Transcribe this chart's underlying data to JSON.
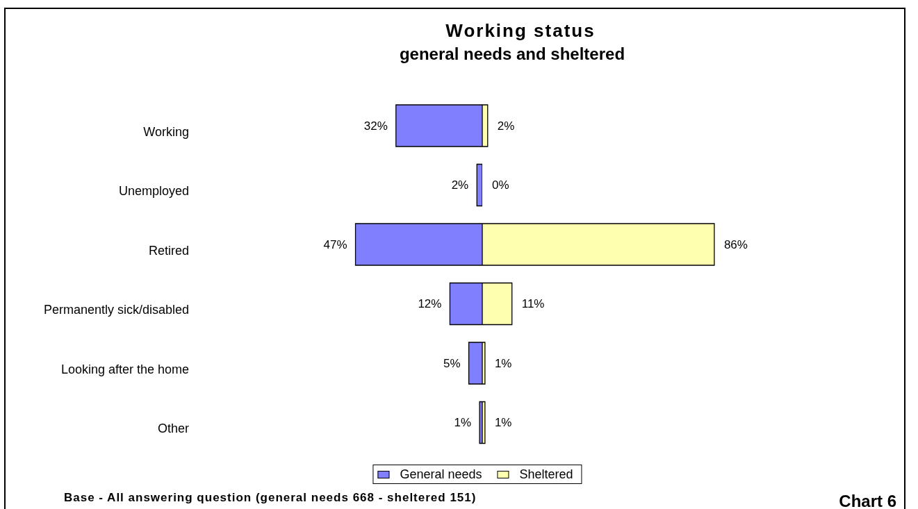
{
  "chart_data": [
    {
      "type": "bar",
      "orientation": "horizontal",
      "title": "Working status",
      "subtitle": "general needs and sheltered",
      "categories": [
        "Working",
        "Unemployed",
        "Retired",
        "Permanently sick/disabled",
        "Looking after the home",
        "Other"
      ],
      "series": [
        {
          "name": "General needs",
          "color": "#8080ff",
          "values": [
            32,
            2,
            47,
            12,
            5,
            1
          ],
          "value_labels": [
            "32%",
            "2%",
            "47%",
            "12%",
            "5%",
            "1%"
          ]
        }
      ],
      "tick_labels": "y",
      "legend": "bottom",
      "annotations": [
        "Base - All answering question (general needs 668 - sheltered 151)",
        "Chart 6"
      ]
    },
    {
      "type": "bar",
      "orientation": "horizontal",
      "categories": [
        null,
        null,
        null,
        null,
        null,
        null
      ],
      "series": [
        {
          "name": "Sheltered",
          "color": "#ffffb0",
          "values": [
            2,
            0,
            86,
            11,
            1,
            1
          ],
          "value_labels": [
            "2%",
            "0%",
            "86%",
            "11%",
            "1%",
            "1%"
          ]
        }
      ],
      "tick_labels": false,
      "legend": "bottom"
    }
  ]
}
